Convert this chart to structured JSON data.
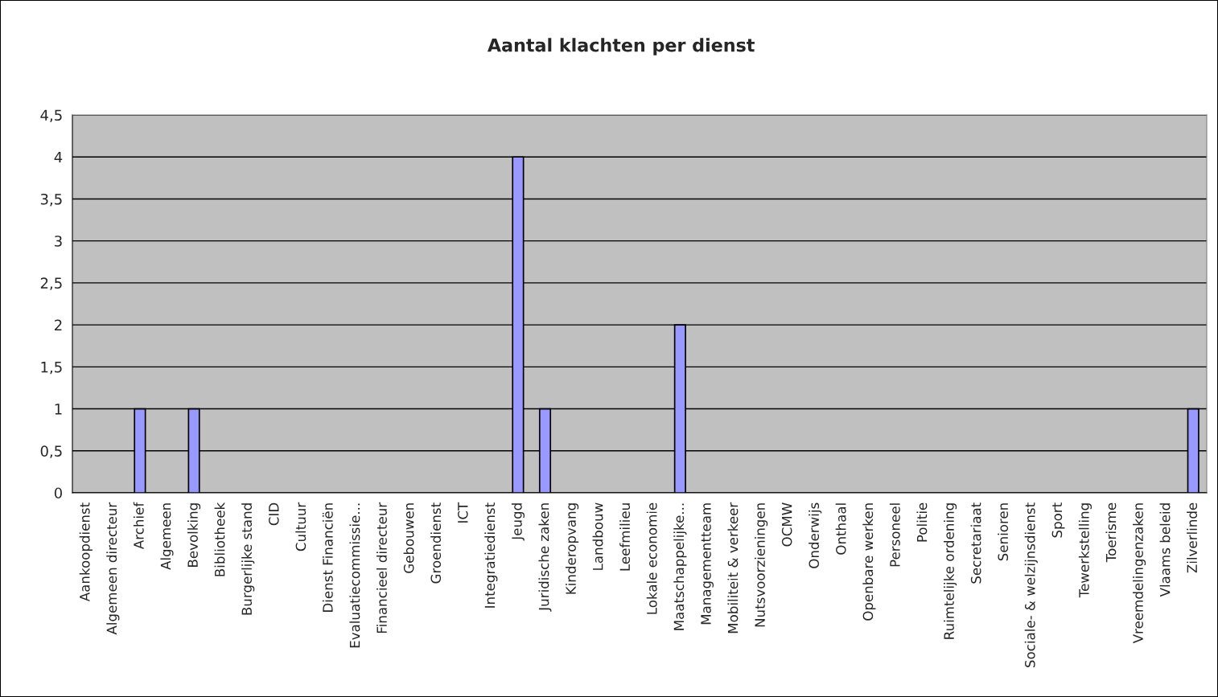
{
  "chart_data": {
    "type": "bar",
    "title": "Aantal klachten per dienst",
    "categories": [
      "Aankoopdienst",
      "Algemeen directeur",
      "Archief",
      "Algemeen",
      "Bevolking",
      "Bibliotheek",
      "Burgerlijke stand",
      "CID",
      "Cultuur",
      "Dienst Financiën",
      "Evaluatiecommissie...",
      "Financieel directeur",
      "Gebouwen",
      "Groendienst",
      "ICT",
      "Integratiedienst",
      "Jeugd",
      "Juridische zaken",
      "Kinderopvang",
      "Landbouw",
      "Leefmilieu",
      "Lokale economie",
      "Maatschappelijke...",
      "Managementteam",
      "Mobiliteit & verkeer",
      "Nutsvoorzieningen",
      "OCMW",
      "Onderwijs",
      "Onthaal",
      "Openbare werken",
      "Personeel",
      "Politie",
      "Ruimtelijke ordening",
      "Secretariaat",
      "Senioren",
      "Sociale- & welzijnsdienst",
      "Sport",
      "Tewerkstelling",
      "Toerisme",
      "Vreemdelingenzaken",
      "Vlaams beleid",
      "Zilverlinde"
    ],
    "values": [
      0,
      0,
      1,
      0,
      1,
      0,
      0,
      0,
      0,
      0,
      0,
      0,
      0,
      0,
      0,
      0,
      4,
      1,
      0,
      0,
      0,
      0,
      2,
      0,
      0,
      0,
      0,
      0,
      0,
      0,
      0,
      0,
      0,
      0,
      0,
      0,
      0,
      0,
      0,
      0,
      0,
      1
    ],
    "color": "#9999ff",
    "ylim": [
      0,
      4.5
    ],
    "yticks": [
      0,
      {
        "value": 0.5,
        "label": "0,5"
      },
      1,
      {
        "value": 1.5,
        "label": "1,5"
      },
      2,
      {
        "value": 2.5,
        "label": "2,5"
      },
      3,
      {
        "value": 3.5,
        "label": "3,5"
      },
      4,
      {
        "value": 4.5,
        "label": "4,5"
      }
    ],
    "grid": "y",
    "legend": false
  }
}
